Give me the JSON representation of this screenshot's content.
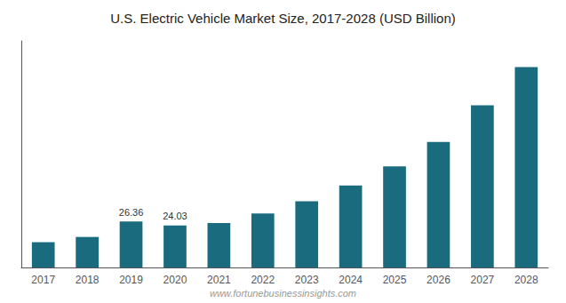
{
  "chart_data": {
    "type": "bar",
    "title": "U.S. Electric Vehicle Market Size, 2017-2028 (USD Billion)",
    "categories": [
      "2017",
      "2018",
      "2019",
      "2020",
      "2021",
      "2022",
      "2023",
      "2024",
      "2025",
      "2026",
      "2027",
      "2028"
    ],
    "values": [
      14.5,
      17.5,
      26.36,
      24.03,
      25.5,
      31.0,
      38.0,
      47.0,
      58.0,
      72.0,
      93.0,
      115.0
    ],
    "color": "#1a6b7e",
    "ylim": [
      0,
      130
    ],
    "grid": false,
    "tick_labels": "x",
    "annotations": [
      {
        "x": "2019",
        "text": "26.36"
      },
      {
        "x": "2020",
        "text": "24.03"
      },
      {
        "text": "www.fortunebusinessinsights.com"
      }
    ]
  }
}
